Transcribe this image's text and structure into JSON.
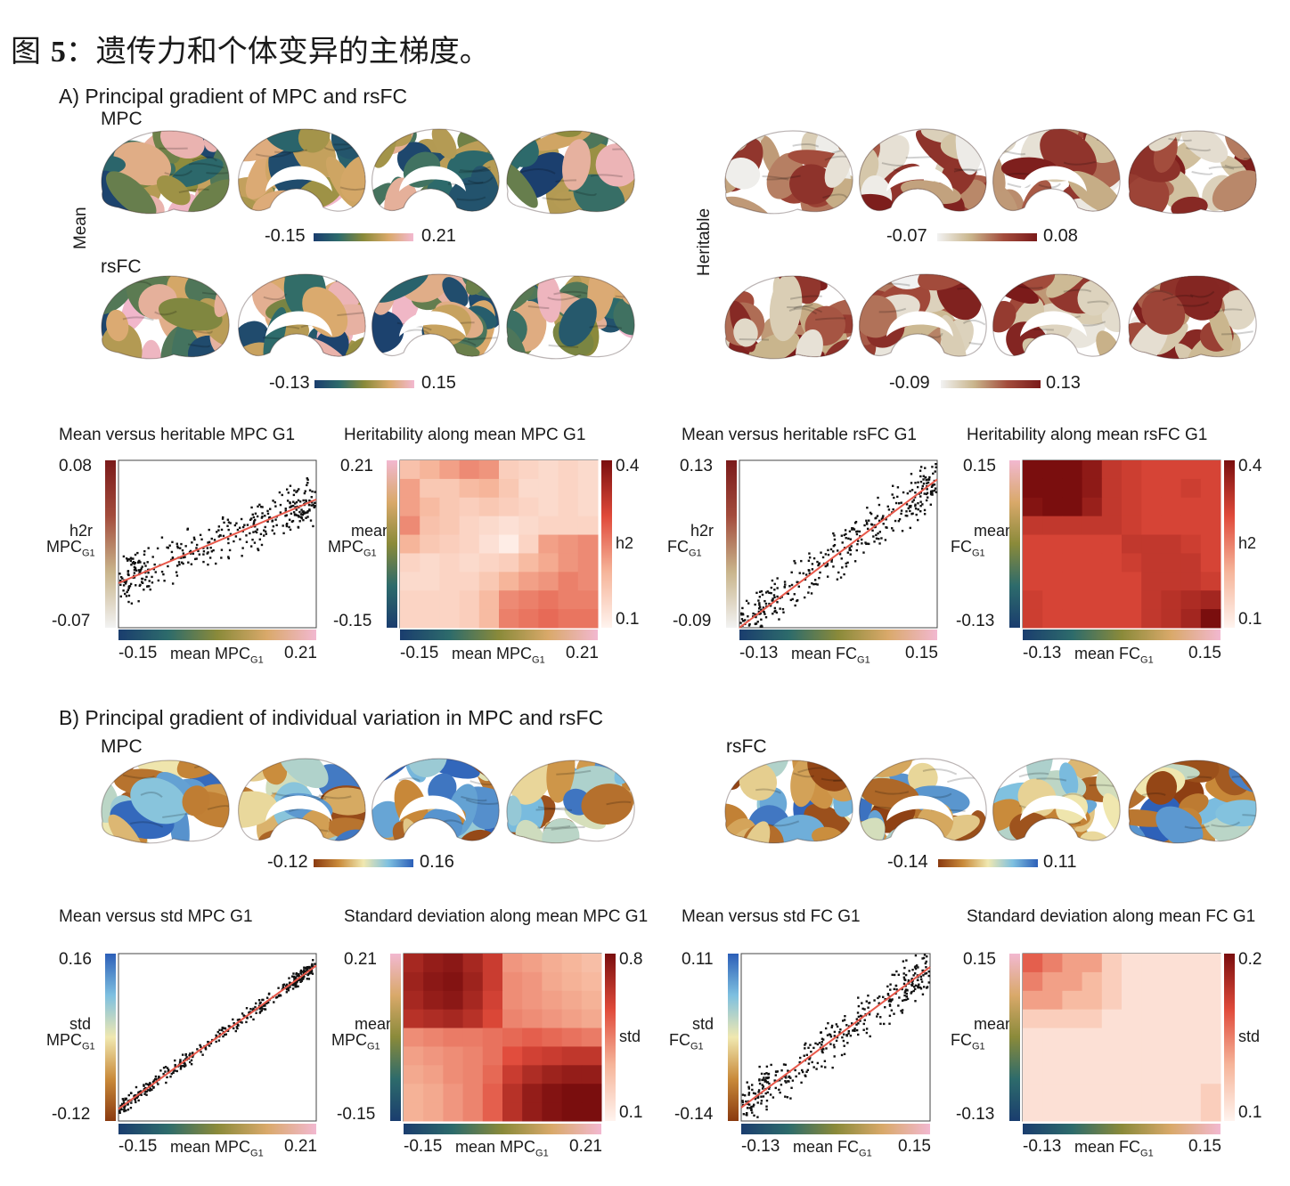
{
  "caption": {
    "prefix": "图",
    "number": "5",
    "text": "：遗传力和个体变异的主梯度。"
  },
  "colors": {
    "mean_map": [
      "#1a3d6e",
      "#2d6b6b",
      "#8a8a3a",
      "#d9a96a",
      "#f2b8d0"
    ],
    "heritable_map": [
      "#f2f2f2",
      "#c9b58c",
      "#a34c3c",
      "#7a1a1a"
    ],
    "heat": [
      "#fff3ee",
      "#f6b59a",
      "#e04a3a",
      "#7a0e0e"
    ],
    "std_map": [
      "#8a3a10",
      "#c98a3a",
      "#f0e8b0",
      "#7ec0e0",
      "#2c5fb8"
    ],
    "fit_line": "#e8584a"
  },
  "sectionA": {
    "title": "A) Principal gradient of MPC and rsFC",
    "mpc_label": "MPC",
    "rsfc_label": "rsFC",
    "mean_label": "Mean",
    "heritable_label": "Heritable",
    "cb_mpc_mean": {
      "min": "-0.15",
      "max": "0.21"
    },
    "cb_rsfc_mean": {
      "min": "-0.13",
      "max": "0.15"
    },
    "cb_mpc_her": {
      "min": "-0.07",
      "max": "0.08"
    },
    "cb_rsfc_her": {
      "min": "-0.09",
      "max": "0.13"
    }
  },
  "sectionB": {
    "title": "B) Principal gradient of individual variation in MPC and rsFC",
    "mpc_label": "MPC",
    "rsfc_label": "rsFC",
    "cb_mpc": {
      "min": "-0.12",
      "max": "0.16"
    },
    "cb_rsfc": {
      "min": "-0.14",
      "max": "0.11"
    }
  },
  "plots": {
    "a1": {
      "title": "Mean versus heritable MPC G1",
      "ymax": "0.08",
      "ymin": "-0.07",
      "xmin": "-0.15",
      "xmax": "0.21",
      "ylab_top": "h2r",
      "ylab_main": "MPC",
      "ylab_sub": "G1",
      "xlab_main": "mean MPC",
      "xlab_sub": "G1"
    },
    "a2": {
      "title": "Heritability along mean MPC G1",
      "ymax": "0.21",
      "ymin": "-0.15",
      "xmin": "-0.15",
      "xmax": "0.21",
      "ylab_top": "mean",
      "ylab_main": "MPC",
      "ylab_sub": "G1",
      "xlab_main": "mean MPC",
      "xlab_sub": "G1",
      "cmax": "0.4",
      "cmin": "0.1",
      "clab": "h2"
    },
    "a3": {
      "title": "Mean versus heritable rsFC G1",
      "ymax": "0.13",
      "ymin": "-0.09",
      "xmin": "-0.13",
      "xmax": "0.15",
      "ylab_top": "h2r",
      "ylab_main": "FC",
      "ylab_sub": "G1",
      "xlab_main": "mean FC",
      "xlab_sub": "G1"
    },
    "a4": {
      "title": "Heritability along mean rsFC G1",
      "ymax": "0.15",
      "ymin": "-0.13",
      "xmin": "-0.13",
      "xmax": "0.15",
      "ylab_top": "mean",
      "ylab_main": "FC",
      "ylab_sub": "G1",
      "xlab_main": "mean FC",
      "xlab_sub": "G1",
      "cmax": "0.4",
      "cmin": "0.1",
      "clab": "h2"
    },
    "b1": {
      "title": "Mean versus std MPC G1",
      "ymax": "0.16",
      "ymin": "-0.12",
      "xmin": "-0.15",
      "xmax": "0.21",
      "ylab_top": "std",
      "ylab_main": "MPC",
      "ylab_sub": "G1",
      "xlab_main": "mean MPC",
      "xlab_sub": "G1"
    },
    "b2": {
      "title": "Standard deviation along mean MPC G1",
      "ymax": "0.21",
      "ymin": "-0.15",
      "xmin": "-0.15",
      "xmax": "0.21",
      "ylab_top": "mean",
      "ylab_main": "MPC",
      "ylab_sub": "G1",
      "xlab_main": "mean MPC",
      "xlab_sub": "G1",
      "cmax": "0.8",
      "cmin": "0.1",
      "clab": "std"
    },
    "b3": {
      "title": "Mean versus std FC G1",
      "ymax": "0.11",
      "ymin": "-0.14",
      "xmin": "-0.13",
      "xmax": "0.15",
      "ylab_top": "std",
      "ylab_main": "FC",
      "ylab_sub": "G1",
      "xlab_main": "mean FC",
      "xlab_sub": "G1"
    },
    "b4": {
      "title": "Standard deviation along mean FC G1",
      "ymax": "0.15",
      "ymin": "-0.13",
      "xmin": "-0.13",
      "xmax": "0.15",
      "ylab_top": "mean",
      "ylab_main": "FC",
      "ylab_sub": "G1",
      "xlab_main": "mean FC",
      "xlab_sub": "G1",
      "cmax": "0.2",
      "cmin": "0.1",
      "clab": "std"
    }
  },
  "chart_data": [
    {
      "type": "scatter",
      "title": "Mean versus heritable MPC G1",
      "xlabel": "mean MPC G1",
      "ylabel": "h2r MPC G1",
      "xlim": [
        -0.15,
        0.21
      ],
      "ylim": [
        -0.07,
        0.08
      ],
      "fit": [
        [
          -0.15,
          -0.03
        ],
        [
          0.21,
          0.045
        ]
      ]
    },
    {
      "type": "heatmap",
      "title": "Heritability along mean MPC G1",
      "xlabel": "mean MPC G1",
      "ylabel": "mean MPC G1",
      "xlim": [
        -0.15,
        0.21
      ],
      "ylim": [
        -0.15,
        0.21
      ],
      "clim": [
        0.1,
        0.4
      ],
      "values": [
        [
          0.18,
          0.2,
          0.22,
          0.24,
          0.23,
          0.16,
          0.15,
          0.14,
          0.15,
          0.14
        ],
        [
          0.22,
          0.17,
          0.17,
          0.19,
          0.2,
          0.17,
          0.14,
          0.14,
          0.15,
          0.14
        ],
        [
          0.22,
          0.19,
          0.17,
          0.16,
          0.17,
          0.16,
          0.15,
          0.14,
          0.15,
          0.14
        ],
        [
          0.24,
          0.18,
          0.17,
          0.15,
          0.14,
          0.13,
          0.14,
          0.15,
          0.15,
          0.15
        ],
        [
          0.2,
          0.17,
          0.16,
          0.15,
          0.13,
          0.11,
          0.15,
          0.22,
          0.23,
          0.24
        ],
        [
          0.15,
          0.14,
          0.15,
          0.14,
          0.15,
          0.16,
          0.19,
          0.21,
          0.23,
          0.24
        ],
        [
          0.14,
          0.14,
          0.15,
          0.15,
          0.17,
          0.2,
          0.22,
          0.23,
          0.25,
          0.24
        ],
        [
          0.15,
          0.15,
          0.15,
          0.16,
          0.19,
          0.24,
          0.25,
          0.26,
          0.25,
          0.25
        ],
        [
          0.15,
          0.15,
          0.15,
          0.16,
          0.19,
          0.25,
          0.26,
          0.27,
          0.26,
          0.26
        ]
      ]
    },
    {
      "type": "scatter",
      "title": "Mean versus heritable rsFC G1",
      "xlabel": "mean FC G1",
      "ylabel": "h2r FC G1",
      "xlim": [
        -0.13,
        0.15
      ],
      "ylim": [
        -0.09,
        0.13
      ],
      "fit": [
        [
          -0.13,
          -0.09
        ],
        [
          0.15,
          0.105
        ]
      ]
    },
    {
      "type": "heatmap",
      "title": "Heritability along mean rsFC G1",
      "xlabel": "mean FC G1",
      "ylabel": "mean FC G1",
      "xlim": [
        -0.13,
        0.15
      ],
      "ylim": [
        -0.13,
        0.15
      ],
      "clim": [
        0.1,
        0.4
      ],
      "values": [
        [
          0.4,
          0.4,
          0.4,
          0.38,
          0.33,
          0.32,
          0.31,
          0.31,
          0.31,
          0.31
        ],
        [
          0.4,
          0.4,
          0.4,
          0.38,
          0.33,
          0.32,
          0.31,
          0.31,
          0.32,
          0.31
        ],
        [
          0.39,
          0.4,
          0.4,
          0.37,
          0.33,
          0.32,
          0.31,
          0.31,
          0.31,
          0.31
        ],
        [
          0.33,
          0.33,
          0.33,
          0.33,
          0.33,
          0.32,
          0.31,
          0.31,
          0.31,
          0.31
        ],
        [
          0.31,
          0.31,
          0.31,
          0.31,
          0.31,
          0.33,
          0.33,
          0.33,
          0.32,
          0.31
        ],
        [
          0.31,
          0.31,
          0.31,
          0.31,
          0.31,
          0.32,
          0.33,
          0.33,
          0.33,
          0.31
        ],
        [
          0.31,
          0.31,
          0.31,
          0.31,
          0.31,
          0.31,
          0.33,
          0.33,
          0.33,
          0.32
        ],
        [
          0.32,
          0.31,
          0.31,
          0.31,
          0.31,
          0.31,
          0.33,
          0.34,
          0.35,
          0.36
        ],
        [
          0.32,
          0.31,
          0.31,
          0.31,
          0.31,
          0.31,
          0.33,
          0.34,
          0.36,
          0.4
        ]
      ]
    },
    {
      "type": "scatter",
      "title": "Mean versus std MPC G1",
      "xlabel": "mean MPC G1",
      "ylabel": "std MPC G1",
      "xlim": [
        -0.15,
        0.21
      ],
      "ylim": [
        -0.12,
        0.16
      ],
      "fit": [
        [
          -0.15,
          -0.1
        ],
        [
          0.21,
          0.14
        ]
      ]
    },
    {
      "type": "heatmap",
      "title": "Standard deviation along mean MPC G1",
      "xlabel": "mean MPC G1",
      "ylabel": "mean MPC G1",
      "xlim": [
        -0.15,
        0.21
      ],
      "ylim": [
        -0.15,
        0.21
      ],
      "clim": [
        0.1,
        0.8
      ],
      "values": [
        [
          0.7,
          0.74,
          0.76,
          0.7,
          0.62,
          0.4,
          0.38,
          0.35,
          0.33,
          0.3
        ],
        [
          0.72,
          0.76,
          0.78,
          0.72,
          0.62,
          0.42,
          0.4,
          0.36,
          0.34,
          0.32
        ],
        [
          0.7,
          0.74,
          0.76,
          0.7,
          0.6,
          0.42,
          0.4,
          0.38,
          0.36,
          0.34
        ],
        [
          0.66,
          0.68,
          0.7,
          0.66,
          0.58,
          0.44,
          0.42,
          0.4,
          0.38,
          0.36
        ],
        [
          0.42,
          0.44,
          0.46,
          0.46,
          0.48,
          0.5,
          0.52,
          0.5,
          0.48,
          0.46
        ],
        [
          0.38,
          0.4,
          0.42,
          0.44,
          0.48,
          0.56,
          0.6,
          0.62,
          0.64,
          0.64
        ],
        [
          0.36,
          0.38,
          0.42,
          0.44,
          0.5,
          0.62,
          0.68,
          0.72,
          0.74,
          0.74
        ],
        [
          0.34,
          0.36,
          0.4,
          0.44,
          0.52,
          0.66,
          0.74,
          0.78,
          0.8,
          0.8
        ],
        [
          0.34,
          0.36,
          0.4,
          0.44,
          0.52,
          0.66,
          0.74,
          0.78,
          0.8,
          0.8
        ]
      ]
    },
    {
      "type": "scatter",
      "title": "Mean versus std FC G1",
      "xlabel": "mean FC G1",
      "ylabel": "std FC G1",
      "xlim": [
        -0.13,
        0.15
      ],
      "ylim": [
        -0.14,
        0.11
      ],
      "fit": [
        [
          -0.13,
          -0.12
        ],
        [
          0.15,
          0.09
        ]
      ]
    },
    {
      "type": "heatmap",
      "title": "Standard deviation along mean FC G1",
      "xlabel": "mean FC G1",
      "ylabel": "mean FC G1",
      "xlim": [
        -0.13,
        0.15
      ],
      "ylim": [
        -0.13,
        0.15
      ],
      "clim": [
        0.1,
        0.2
      ],
      "values": [
        [
          0.16,
          0.15,
          0.14,
          0.14,
          0.12,
          0.11,
          0.11,
          0.11,
          0.11,
          0.11
        ],
        [
          0.15,
          0.14,
          0.14,
          0.13,
          0.12,
          0.11,
          0.11,
          0.11,
          0.11,
          0.11
        ],
        [
          0.14,
          0.14,
          0.13,
          0.13,
          0.12,
          0.11,
          0.11,
          0.11,
          0.11,
          0.11
        ],
        [
          0.12,
          0.12,
          0.12,
          0.12,
          0.11,
          0.11,
          0.11,
          0.11,
          0.11,
          0.11
        ],
        [
          0.11,
          0.11,
          0.11,
          0.11,
          0.11,
          0.11,
          0.11,
          0.11,
          0.11,
          0.11
        ],
        [
          0.11,
          0.11,
          0.11,
          0.11,
          0.11,
          0.11,
          0.11,
          0.11,
          0.11,
          0.11
        ],
        [
          0.11,
          0.11,
          0.11,
          0.11,
          0.11,
          0.11,
          0.11,
          0.11,
          0.11,
          0.11
        ],
        [
          0.11,
          0.11,
          0.11,
          0.11,
          0.11,
          0.11,
          0.11,
          0.11,
          0.11,
          0.12
        ],
        [
          0.11,
          0.11,
          0.11,
          0.11,
          0.11,
          0.11,
          0.11,
          0.11,
          0.11,
          0.12
        ]
      ]
    }
  ]
}
